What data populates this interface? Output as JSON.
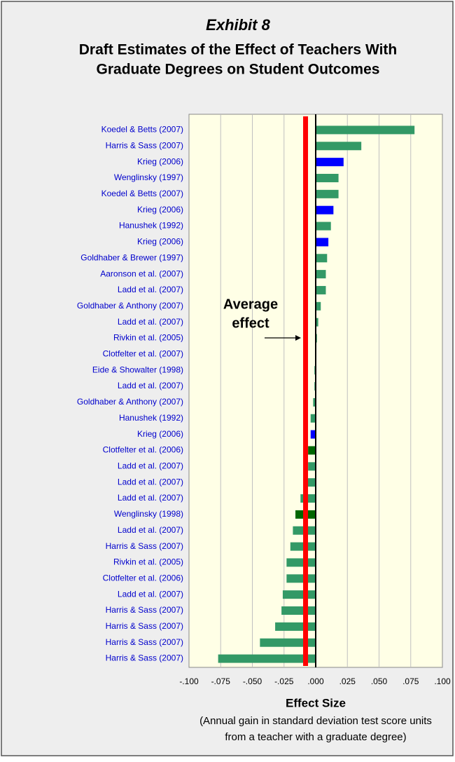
{
  "chart_data": {
    "type": "barh",
    "title": "Exhibit 8",
    "subtitle": [
      "Draft Estimates of the Effect of Teachers With",
      "Graduate Degrees on Student Outcomes"
    ],
    "x_label": "Effect Size",
    "x_label_note": [
      "(Annual gain in standard deviation test score units",
      "from a teacher with a graduate degree)"
    ],
    "categories": [
      "Koedel & Betts (2007)",
      "Harris & Sass (2007)",
      "Krieg (2006)",
      "Wenglinsky (1997)",
      "Koedel & Betts (2007)",
      "Krieg (2006)",
      "Hanushek (1992)",
      "Krieg (2006)",
      "Goldhaber & Brewer (1997)",
      "Aaronson et al. (2007)",
      "Ladd et al. (2007)",
      "Goldhaber & Anthony (2007)",
      "Ladd et al. (2007)",
      "Rivkin et al. (2005)",
      "Clotfelter et al. (2007)",
      "Eide & Showalter (1998)",
      "Ladd et al. (2007)",
      "Goldhaber & Anthony (2007)",
      "Hanushek (1992)",
      "Krieg (2006)",
      "Clotfelter et al. (2006)",
      "Ladd et al. (2007)",
      "Ladd et al. (2007)",
      "Ladd et al. (2007)",
      "Wenglinsky (1998)",
      "Ladd et al. (2007)",
      "Harris & Sass (2007)",
      "Rivkin et al. (2005)",
      "Clotfelter et al. (2006)",
      "Ladd et al. (2007)",
      "Harris & Sass (2007)",
      "Harris & Sass (2007)",
      "Harris & Sass (2007)",
      "Harris & Sass (2007)"
    ],
    "values": [
      0.078,
      0.036,
      0.022,
      0.018,
      0.018,
      0.014,
      0.012,
      0.01,
      0.009,
      0.008,
      0.008,
      0.004,
      0.002,
      0.001,
      0.0005,
      -0.001,
      -0.001,
      -0.002,
      -0.004,
      -0.004,
      -0.006,
      -0.006,
      -0.009,
      -0.012,
      -0.016,
      -0.018,
      -0.02,
      -0.023,
      -0.023,
      -0.026,
      -0.027,
      -0.032,
      -0.044,
      -0.077
    ],
    "colors": [
      "#339966",
      "#339966",
      "#0000ff",
      "#339966",
      "#339966",
      "#0000ff",
      "#339966",
      "#0000ff",
      "#339966",
      "#339966",
      "#339966",
      "#339966",
      "#339966",
      "#339966",
      "#339966",
      "#339966",
      "#339966",
      "#339966",
      "#339966",
      "#0000ff",
      "#006600",
      "#339966",
      "#339966",
      "#339966",
      "#006600",
      "#339966",
      "#339966",
      "#339966",
      "#339966",
      "#339966",
      "#339966",
      "#339966",
      "#339966",
      "#339966"
    ],
    "average": -0.008,
    "average_color": "#ff0000",
    "annotation": [
      "Average",
      "effect"
    ],
    "xlim": [
      -0.1,
      0.1
    ],
    "xticks": [
      {
        "value": -0.1,
        "label": "-.100"
      },
      {
        "value": -0.075,
        "label": "-.075"
      },
      {
        "value": -0.05,
        "label": "-.050"
      },
      {
        "value": -0.025,
        "label": "-.025"
      },
      {
        "value": 0,
        "label": ".000"
      },
      {
        "value": 0.025,
        "label": ".025"
      },
      {
        "value": 0.05,
        "label": ".050"
      },
      {
        "value": 0.075,
        "label": ".075"
      },
      {
        "value": 0.1,
        "label": ".100"
      }
    ],
    "grid": true
  }
}
